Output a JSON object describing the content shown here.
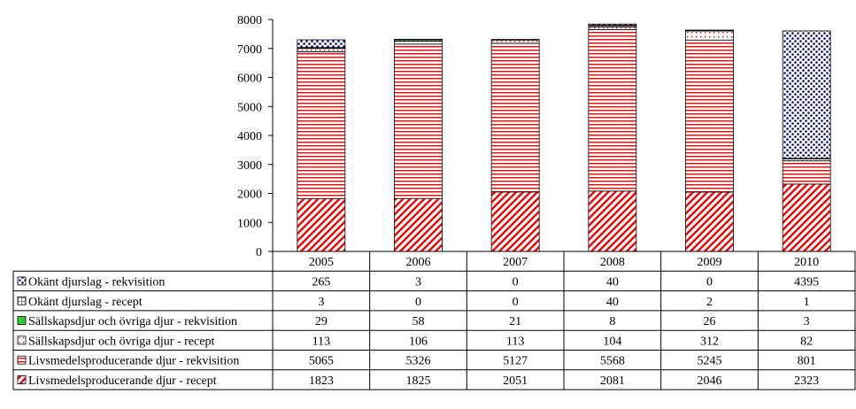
{
  "chart_data": {
    "type": "bar",
    "stacked": true,
    "title": "",
    "xlabel": "",
    "ylabel": "",
    "ylim": [
      0,
      8000
    ],
    "y_ticks": [
      0,
      1000,
      2000,
      3000,
      4000,
      5000,
      6000,
      7000,
      8000
    ],
    "categories": [
      "2005",
      "2006",
      "2007",
      "2008",
      "2009",
      "2010"
    ],
    "series": [
      {
        "name": "Livsmedelsproducerande djur - recept",
        "values": [
          1823,
          1825,
          2051,
          2081,
          2046,
          2323
        ],
        "color": "#ff0000",
        "pattern": "diagonal"
      },
      {
        "name": "Livsmedelsproducerande djur - rekvisition",
        "values": [
          5065,
          5326,
          5127,
          5568,
          5245,
          801
        ],
        "color": "#ff0000",
        "pattern": "horizontal"
      },
      {
        "name": "Sällskapsdjur och övriga djur - recept",
        "values": [
          113,
          106,
          113,
          104,
          312,
          82
        ],
        "color": "#ff0000",
        "pattern": "dots-sparse"
      },
      {
        "name": "Sällskapsdjur och övriga djur - rekvisition",
        "values": [
          29,
          58,
          21,
          8,
          26,
          3
        ],
        "color": "#33cc33",
        "pattern": "solid"
      },
      {
        "name": "Okänt djurslag - recept",
        "values": [
          3,
          0,
          0,
          40,
          2,
          1
        ],
        "color": "#888888",
        "pattern": "grid"
      },
      {
        "name": "Okänt djurslag - rekvisition",
        "values": [
          265,
          3,
          0,
          40,
          0,
          4395
        ],
        "color": "#000080",
        "pattern": "dots-dense"
      }
    ],
    "table_row_order": [
      5,
      4,
      3,
      2,
      1,
      0
    ]
  }
}
